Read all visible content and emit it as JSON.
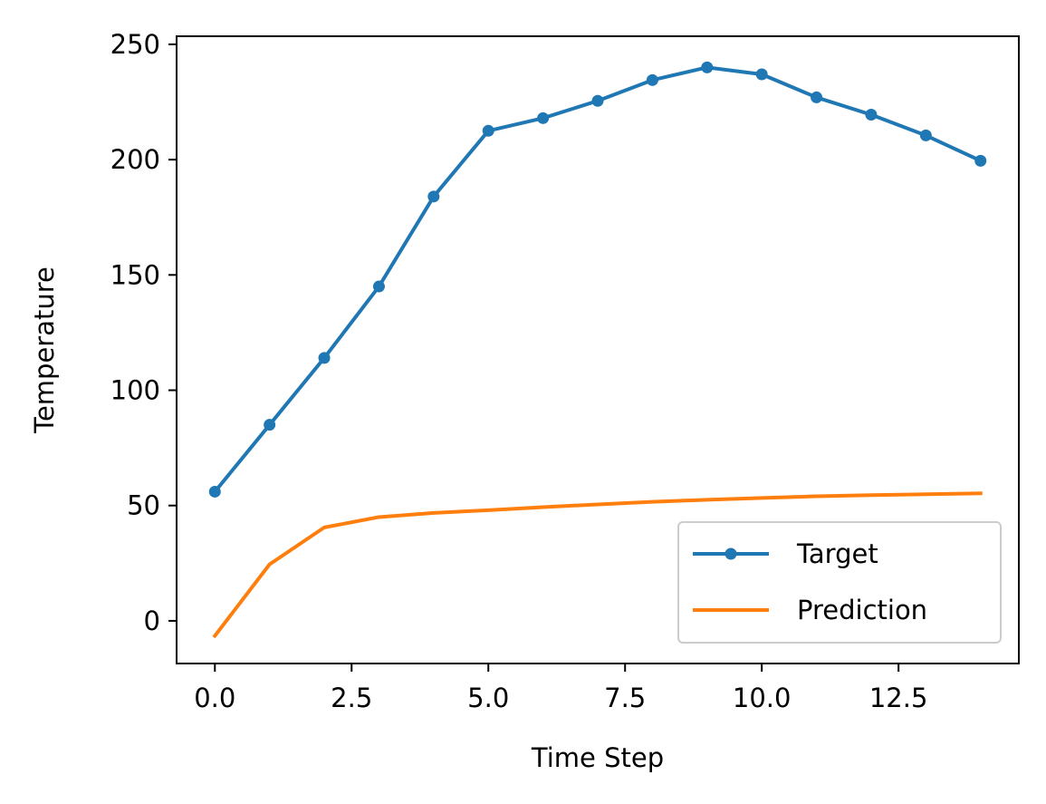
{
  "chart_data": {
    "type": "line",
    "title": "",
    "xlabel": "Time Step",
    "ylabel": "Temperature",
    "xlim": [
      -0.7,
      14.7
    ],
    "ylim": [
      -18.5,
      253.5
    ],
    "xticks": [
      0.0,
      2.5,
      5.0,
      7.5,
      10.0,
      12.5
    ],
    "xtick_labels": [
      "0.0",
      "2.5",
      "5.0",
      "7.5",
      "10.0",
      "12.5"
    ],
    "yticks": [
      0,
      50,
      100,
      150,
      200,
      250
    ],
    "ytick_labels": [
      "0",
      "50",
      "100",
      "150",
      "200",
      "250"
    ],
    "grid": false,
    "legend_position": "lower-right",
    "x": [
      0,
      1,
      2,
      3,
      4,
      5,
      6,
      7,
      8,
      9,
      10,
      11,
      12,
      13,
      14
    ],
    "series": [
      {
        "name": "Target",
        "color": "#1f77b4",
        "marker": "circle",
        "values": [
          56,
          85,
          114,
          145,
          184,
          212.5,
          218,
          225.5,
          234.5,
          240,
          237,
          227,
          219.5,
          210.5,
          199.5
        ]
      },
      {
        "name": "Prediction",
        "color": "#ff7f0e",
        "marker": "none",
        "values": [
          -6.5,
          24.5,
          40.5,
          45,
          46.8,
          48,
          49.3,
          50.5,
          51.6,
          52.5,
          53.3,
          54,
          54.5,
          54.9,
          55.3
        ]
      }
    ]
  }
}
